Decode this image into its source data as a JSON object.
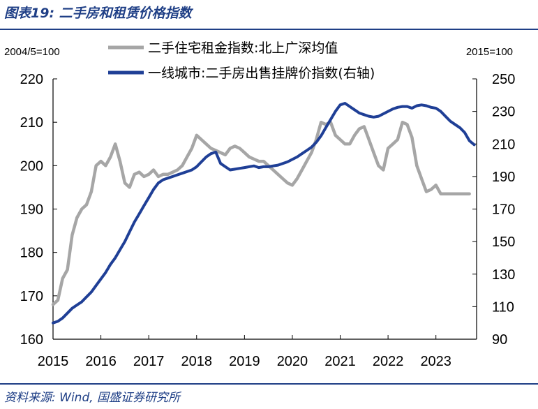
{
  "title": "图表19: 二手房和租赁价格指数",
  "source": "资料来源: Wind, 国盛证券研究所",
  "chart_data": {
    "type": "line",
    "left_unit": "2004/5=100",
    "right_unit": "2015=100",
    "x_ticks": [
      "2015",
      "2016",
      "2017",
      "2018",
      "2019",
      "2020",
      "2021",
      "2022",
      "2023"
    ],
    "x_range": [
      2015,
      2023.85
    ],
    "ylim_left": [
      160,
      220
    ],
    "ylim_right": [
      90,
      250
    ],
    "yticks_left": [
      "160",
      "170",
      "180",
      "190",
      "200",
      "210",
      "220"
    ],
    "yticks_right": [
      "90",
      "110",
      "130",
      "150",
      "170",
      "190",
      "210",
      "230",
      "250"
    ],
    "colors": {
      "rent": "#a6a6a6",
      "secondhand": "#1f3f96"
    },
    "series": [
      {
        "name": "二手住宅租金指数:北上广深均值",
        "axis": "left",
        "color": "#a6a6a6",
        "x": [
          2015.0,
          2015.1,
          2015.2,
          2015.3,
          2015.4,
          2015.5,
          2015.6,
          2015.7,
          2015.8,
          2015.9,
          2016.0,
          2016.1,
          2016.2,
          2016.3,
          2016.4,
          2016.5,
          2016.6,
          2016.7,
          2016.8,
          2016.9,
          2017.0,
          2017.1,
          2017.2,
          2017.3,
          2017.4,
          2017.5,
          2017.6,
          2017.7,
          2017.8,
          2017.9,
          2018.0,
          2018.1,
          2018.2,
          2018.3,
          2018.4,
          2018.5,
          2018.6,
          2018.7,
          2018.8,
          2018.9,
          2019.0,
          2019.1,
          2019.2,
          2019.3,
          2019.4,
          2019.5,
          2019.6,
          2019.7,
          2019.8,
          2019.9,
          2020.0,
          2020.1,
          2020.2,
          2020.3,
          2020.4,
          2020.5,
          2020.6,
          2020.7,
          2020.8,
          2020.9,
          2021.0,
          2021.1,
          2021.2,
          2021.3,
          2021.4,
          2021.5,
          2021.6,
          2021.7,
          2021.8,
          2021.9,
          2022.0,
          2022.1,
          2022.2,
          2022.3,
          2022.4,
          2022.5,
          2022.6,
          2022.7,
          2022.8,
          2022.9,
          2023.0,
          2023.1,
          2023.2,
          2023.3,
          2023.4,
          2023.5,
          2023.6,
          2023.7
        ],
        "values": [
          168.0,
          169.0,
          174.0,
          176.0,
          184.0,
          188.0,
          190.0,
          191.0,
          194.0,
          200.0,
          201.0,
          200.0,
          202.0,
          205.0,
          201.0,
          196.0,
          195.0,
          198.0,
          198.5,
          197.5,
          198.0,
          199.0,
          197.5,
          198.0,
          198.0,
          198.5,
          199.0,
          200.0,
          202.0,
          204.0,
          207.0,
          206.0,
          205.0,
          204.0,
          203.5,
          203.0,
          202.5,
          204.0,
          204.5,
          204.0,
          203.0,
          202.0,
          201.5,
          201.0,
          201.0,
          200.0,
          199.0,
          198.0,
          197.0,
          196.0,
          195.5,
          197.0,
          199.0,
          201.0,
          203.0,
          206.0,
          210.0,
          209.5,
          210.0,
          207.0,
          206.0,
          205.0,
          205.0,
          207.0,
          208.5,
          209.0,
          206.0,
          203.0,
          200.0,
          199.0,
          204.0,
          205.0,
          206.0,
          210.0,
          209.5,
          206.5,
          200.0,
          197.0,
          194.0,
          194.5,
          195.5,
          193.5,
          193.5,
          193.5,
          193.5,
          193.5,
          193.5,
          193.5
        ]
      },
      {
        "name": "一线城市:二手房出售挂牌价指数(右轴)",
        "axis": "right",
        "color": "#1f3f96",
        "x": [
          2015.0,
          2015.1,
          2015.2,
          2015.3,
          2015.4,
          2015.5,
          2015.6,
          2015.7,
          2015.8,
          2015.9,
          2016.0,
          2016.1,
          2016.2,
          2016.3,
          2016.4,
          2016.5,
          2016.6,
          2016.7,
          2016.8,
          2016.9,
          2017.0,
          2017.1,
          2017.2,
          2017.3,
          2017.4,
          2017.5,
          2017.6,
          2017.7,
          2017.8,
          2017.9,
          2018.0,
          2018.1,
          2018.2,
          2018.3,
          2018.4,
          2018.5,
          2018.6,
          2018.7,
          2018.8,
          2018.9,
          2019.0,
          2019.1,
          2019.2,
          2019.3,
          2019.4,
          2019.5,
          2019.6,
          2019.7,
          2019.8,
          2019.9,
          2020.0,
          2020.1,
          2020.2,
          2020.3,
          2020.4,
          2020.5,
          2020.6,
          2020.7,
          2020.8,
          2020.9,
          2021.0,
          2021.1,
          2021.2,
          2021.3,
          2021.4,
          2021.5,
          2021.6,
          2021.7,
          2021.8,
          2021.9,
          2022.0,
          2022.1,
          2022.2,
          2022.3,
          2022.4,
          2022.5,
          2022.6,
          2022.7,
          2022.8,
          2022.9,
          2023.0,
          2023.1,
          2023.2,
          2023.3,
          2023.4,
          2023.5,
          2023.6,
          2023.7,
          2023.8
        ],
        "values": [
          100.0,
          101.0,
          103.0,
          106.0,
          109.0,
          111.0,
          113.0,
          116.0,
          119.0,
          123.0,
          127.0,
          131.0,
          136.0,
          140.0,
          145.0,
          150.0,
          156.0,
          162.0,
          167.0,
          172.0,
          177.0,
          182.0,
          186.0,
          188.0,
          189.0,
          190.0,
          191.0,
          192.0,
          193.0,
          194.0,
          196.0,
          199.0,
          202.0,
          204.0,
          205.0,
          198.0,
          196.0,
          194.0,
          194.5,
          195.0,
          195.5,
          196.0,
          196.5,
          195.5,
          196.0,
          196.0,
          196.5,
          197.0,
          198.0,
          199.0,
          200.5,
          202.0,
          204.0,
          206.0,
          208.0,
          211.0,
          215.0,
          220.0,
          225.0,
          230.0,
          234.0,
          235.0,
          233.0,
          231.0,
          229.0,
          228.0,
          227.0,
          226.5,
          227.0,
          228.5,
          230.0,
          231.5,
          232.5,
          233.0,
          233.0,
          232.0,
          233.5,
          234.0,
          233.5,
          232.5,
          232.0,
          230.0,
          227.0,
          224.0,
          222.0,
          220.0,
          217.0,
          212.0,
          209.5
        ]
      }
    ]
  }
}
